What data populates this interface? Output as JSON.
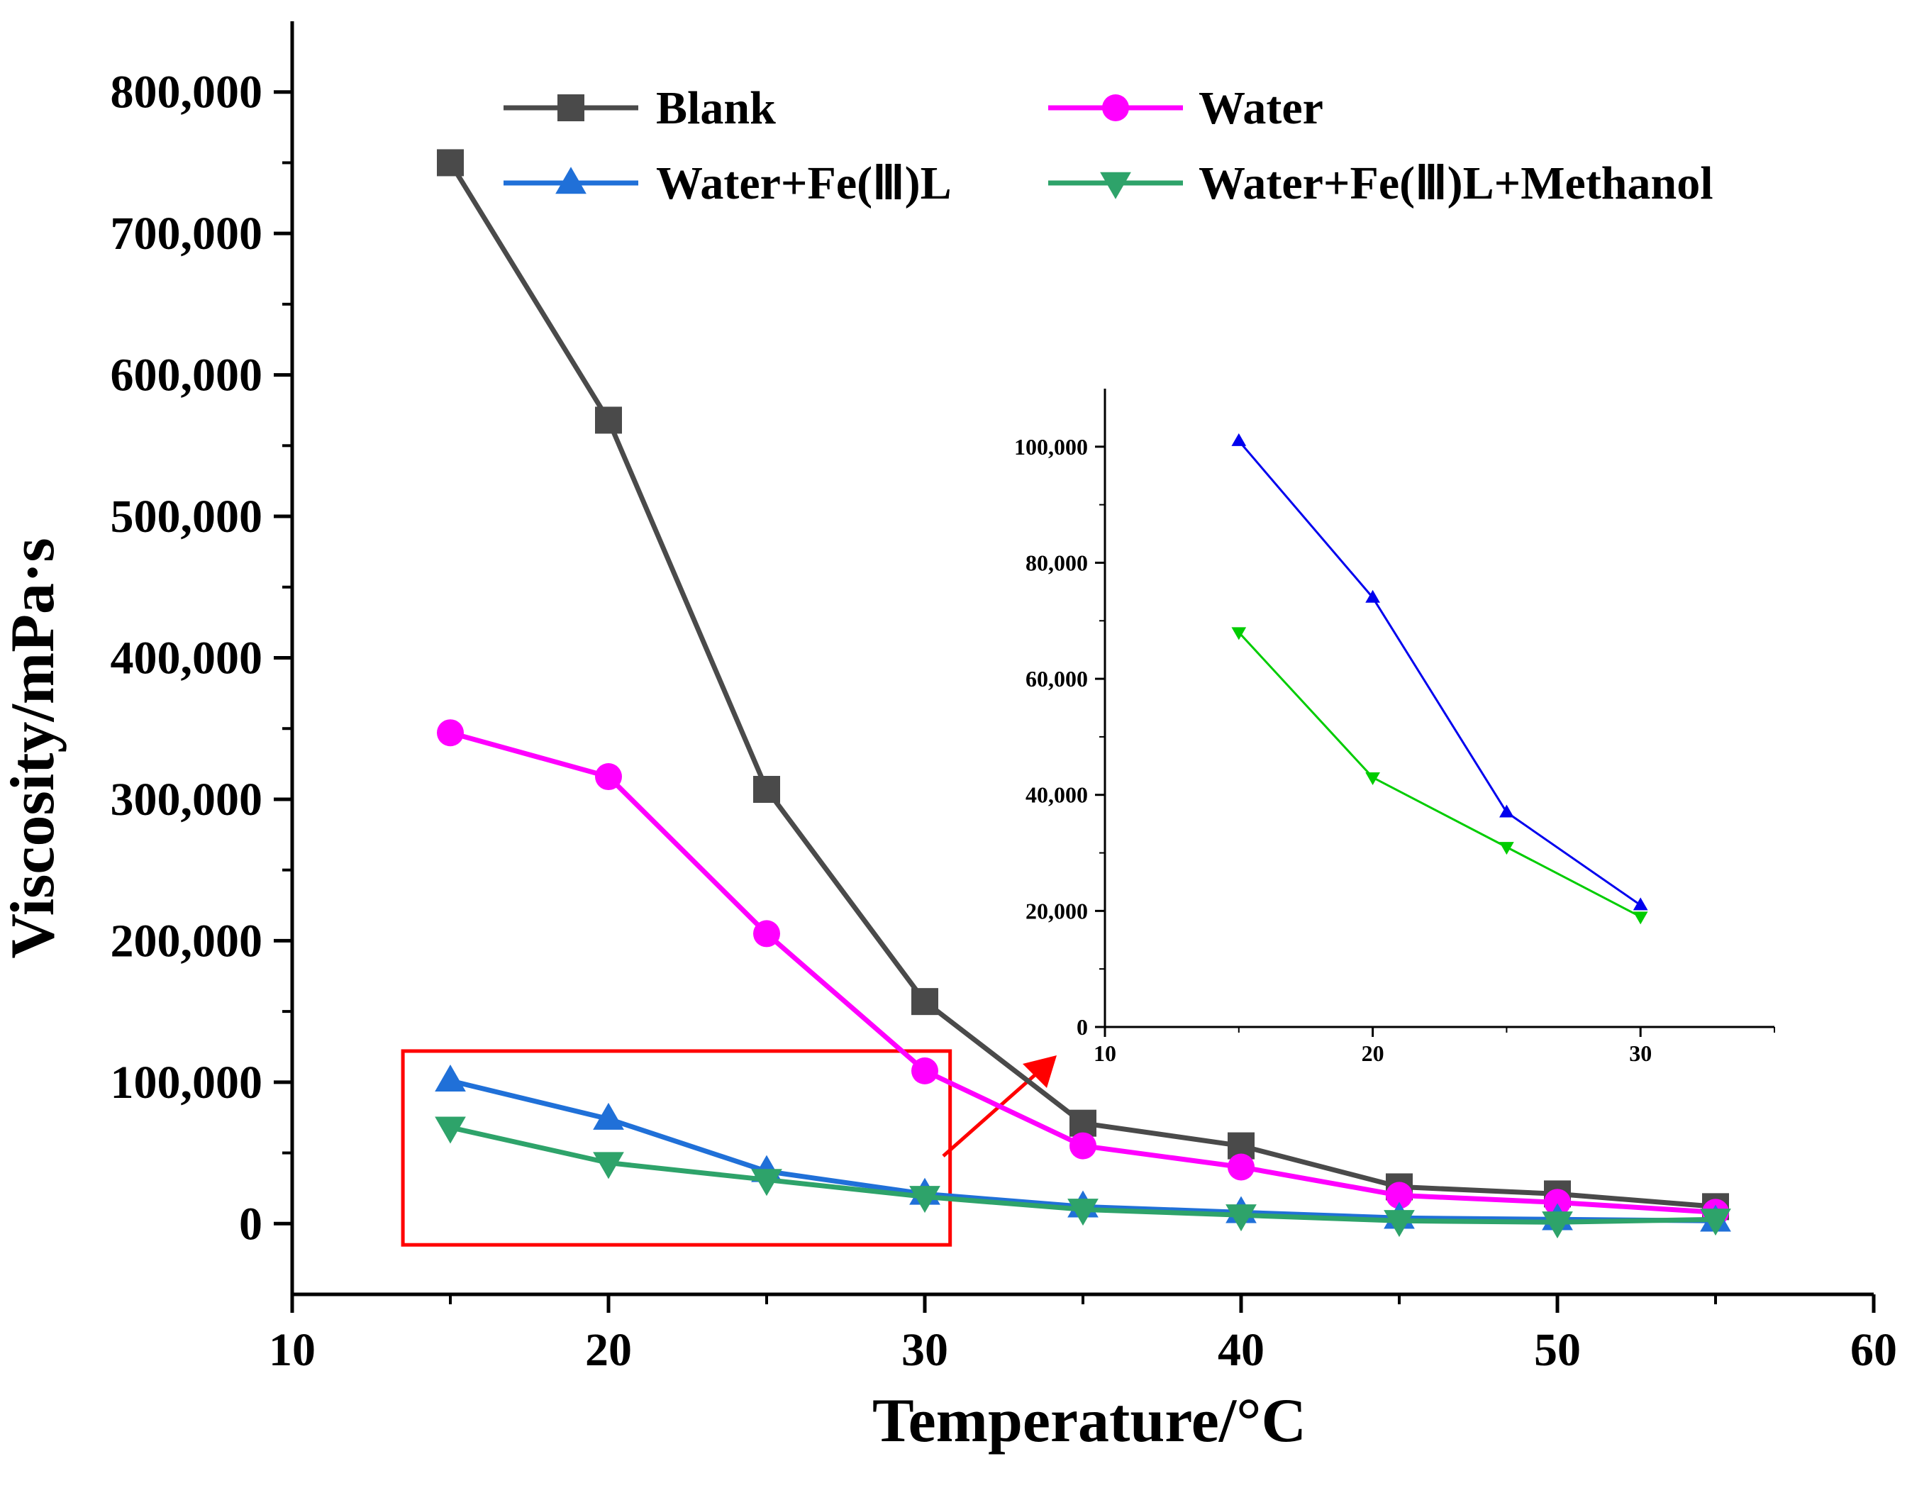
{
  "chart_data": {
    "type": "line",
    "xlabel": "Temperature/°C",
    "ylabel": "Viscosity/mPa·s",
    "xlim": [
      10,
      60
    ],
    "ylim": [
      -50000,
      850000
    ],
    "xticks": [
      10,
      20,
      30,
      40,
      50,
      60
    ],
    "xtick_labels": [
      "10",
      "20",
      "30",
      "40",
      "50",
      "60"
    ],
    "yticks": [
      0,
      100000,
      200000,
      300000,
      400000,
      500000,
      600000,
      700000,
      800000
    ],
    "ytick_labels": [
      "0",
      "100,000",
      "200,000",
      "300,000",
      "400,000",
      "500,000",
      "600,000",
      "700,000",
      "800,000"
    ],
    "x": [
      15,
      20,
      25,
      30,
      35,
      40,
      45,
      50,
      55
    ],
    "series": [
      {
        "name": "Blank",
        "color": "#4a4a4a",
        "marker": "square",
        "values": [
          750000,
          568000,
          307000,
          157000,
          71000,
          55000,
          26000,
          21000,
          12000
        ]
      },
      {
        "name": "Water",
        "color": "#ff00ff",
        "marker": "circle",
        "values": [
          347000,
          316000,
          205000,
          108000,
          55000,
          40000,
          20000,
          15000,
          8000
        ]
      },
      {
        "name": "Water+Fe(Ⅲ)L",
        "color": "#2070d8",
        "marker": "triangle-up",
        "values": [
          101000,
          74000,
          37000,
          21000,
          12000,
          8000,
          4000,
          3000,
          2000
        ]
      },
      {
        "name": "Water+Fe(Ⅲ)L+Methanol",
        "color": "#2ea36a",
        "marker": "triangle-down",
        "values": [
          68000,
          43000,
          31000,
          19000,
          10000,
          6000,
          2000,
          1000,
          3000
        ]
      }
    ],
    "legend": {
      "position": "top",
      "columns": 2
    },
    "highlight": {
      "label": "zoom region",
      "x_range": [
        13.5,
        30.8
      ],
      "y_range": [
        -15000,
        122000
      ],
      "color": "#ff0000"
    },
    "inset": {
      "type": "line",
      "xlim": [
        10,
        35
      ],
      "ylim": [
        0,
        110000
      ],
      "xticks": [
        10,
        20,
        30
      ],
      "xtick_labels": [
        "10",
        "20",
        "30"
      ],
      "yticks": [
        0,
        20000,
        40000,
        60000,
        80000,
        100000
      ],
      "ytick_labels": [
        "0",
        "20,000",
        "40,000",
        "60,000",
        "80,000",
        "100,000"
      ],
      "x": [
        15,
        20,
        25,
        30
      ],
      "series": [
        {
          "name": "Water+Fe(Ⅲ)L",
          "color": "#0000ee",
          "marker": "triangle-up",
          "values": [
            101000,
            74000,
            37000,
            21000
          ]
        },
        {
          "name": "Water+Fe(Ⅲ)L+Methanol",
          "color": "#00cc00",
          "marker": "triangle-down",
          "values": [
            68000,
            43000,
            31000,
            19000
          ]
        }
      ]
    }
  }
}
